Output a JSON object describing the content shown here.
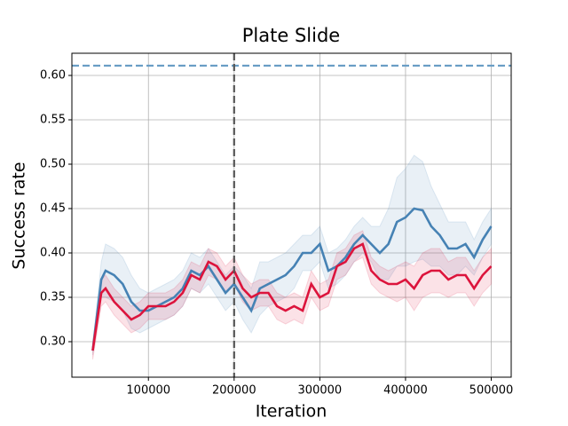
{
  "chart_data": {
    "type": "line",
    "title": "Plate Slide",
    "x_label": "Iteration",
    "y_label": "Success rate",
    "x": [
      35000,
      45000,
      50000,
      60000,
      70000,
      80000,
      90000,
      100000,
      110000,
      120000,
      130000,
      140000,
      150000,
      160000,
      170000,
      180000,
      190000,
      200000,
      210000,
      220000,
      230000,
      240000,
      250000,
      260000,
      270000,
      280000,
      290000,
      300000,
      310000,
      320000,
      330000,
      340000,
      350000,
      360000,
      370000,
      380000,
      390000,
      400000,
      410000,
      420000,
      430000,
      440000,
      450000,
      460000,
      470000,
      480000,
      490000,
      500000
    ],
    "series": [
      {
        "color": "#4682b4",
        "values": [
          0.29,
          0.37,
          0.38,
          0.375,
          0.365,
          0.345,
          0.335,
          0.335,
          0.34,
          0.345,
          0.35,
          0.36,
          0.38,
          0.375,
          0.385,
          0.37,
          0.355,
          0.365,
          0.35,
          0.335,
          0.36,
          0.365,
          0.37,
          0.375,
          0.385,
          0.4,
          0.4,
          0.41,
          0.38,
          0.385,
          0.395,
          0.41,
          0.42,
          0.41,
          0.4,
          0.41,
          0.435,
          0.44,
          0.45,
          0.448,
          0.43,
          0.42,
          0.405,
          0.405,
          0.41,
          0.395,
          0.415,
          0.43
        ],
        "error": [
          0.005,
          0.02,
          0.03,
          0.03,
          0.03,
          0.03,
          0.025,
          0.02,
          0.02,
          0.02,
          0.02,
          0.02,
          0.02,
          0.02,
          0.02,
          0.02,
          0.02,
          0.02,
          0.025,
          0.025,
          0.03,
          0.025,
          0.025,
          0.025,
          0.025,
          0.02,
          0.02,
          0.02,
          0.02,
          0.02,
          0.02,
          0.02,
          0.02,
          0.02,
          0.03,
          0.04,
          0.05,
          0.055,
          0.06,
          0.055,
          0.045,
          0.035,
          0.03,
          0.03,
          0.025,
          0.02,
          0.02,
          0.02
        ]
      },
      {
        "color": "#dc143c",
        "values": [
          0.29,
          0.355,
          0.36,
          0.345,
          0.335,
          0.325,
          0.33,
          0.34,
          0.34,
          0.34,
          0.345,
          0.355,
          0.375,
          0.37,
          0.39,
          0.385,
          0.37,
          0.38,
          0.36,
          0.35,
          0.355,
          0.355,
          0.34,
          0.335,
          0.34,
          0.335,
          0.365,
          0.35,
          0.355,
          0.385,
          0.39,
          0.405,
          0.41,
          0.38,
          0.37,
          0.365,
          0.365,
          0.37,
          0.36,
          0.375,
          0.38,
          0.38,
          0.37,
          0.375,
          0.375,
          0.36,
          0.375,
          0.385
        ],
        "error": [
          0.01,
          0.015,
          0.015,
          0.015,
          0.015,
          0.015,
          0.015,
          0.015,
          0.015,
          0.015,
          0.015,
          0.015,
          0.015,
          0.015,
          0.015,
          0.015,
          0.015,
          0.015,
          0.015,
          0.015,
          0.015,
          0.015,
          0.015,
          0.015,
          0.015,
          0.015,
          0.015,
          0.015,
          0.015,
          0.015,
          0.015,
          0.015,
          0.015,
          0.015,
          0.015,
          0.015,
          0.02,
          0.02,
          0.025,
          0.025,
          0.025,
          0.025,
          0.02,
          0.02,
          0.02,
          0.02,
          0.02,
          0.02
        ]
      }
    ],
    "hline": {
      "value": 0.611,
      "color": "#6a9ec5"
    },
    "vline": {
      "value": 200000,
      "color": "#555555"
    },
    "xlim": [
      10700,
      523300
    ],
    "ylim": [
      0.26,
      0.625
    ],
    "xticks": [
      100000,
      200000,
      300000,
      400000,
      500000
    ],
    "yticks": [
      {
        "value": 0.3,
        "label": "0.30"
      },
      {
        "value": 0.35,
        "label": "0.35"
      },
      {
        "value": 0.4,
        "label": "0.40"
      },
      {
        "value": 0.45,
        "label": "0.45"
      },
      {
        "value": 0.5,
        "label": "0.50"
      },
      {
        "value": 0.55,
        "label": "0.55"
      },
      {
        "value": 0.6,
        "label": "0.60"
      }
    ],
    "grid": true
  }
}
